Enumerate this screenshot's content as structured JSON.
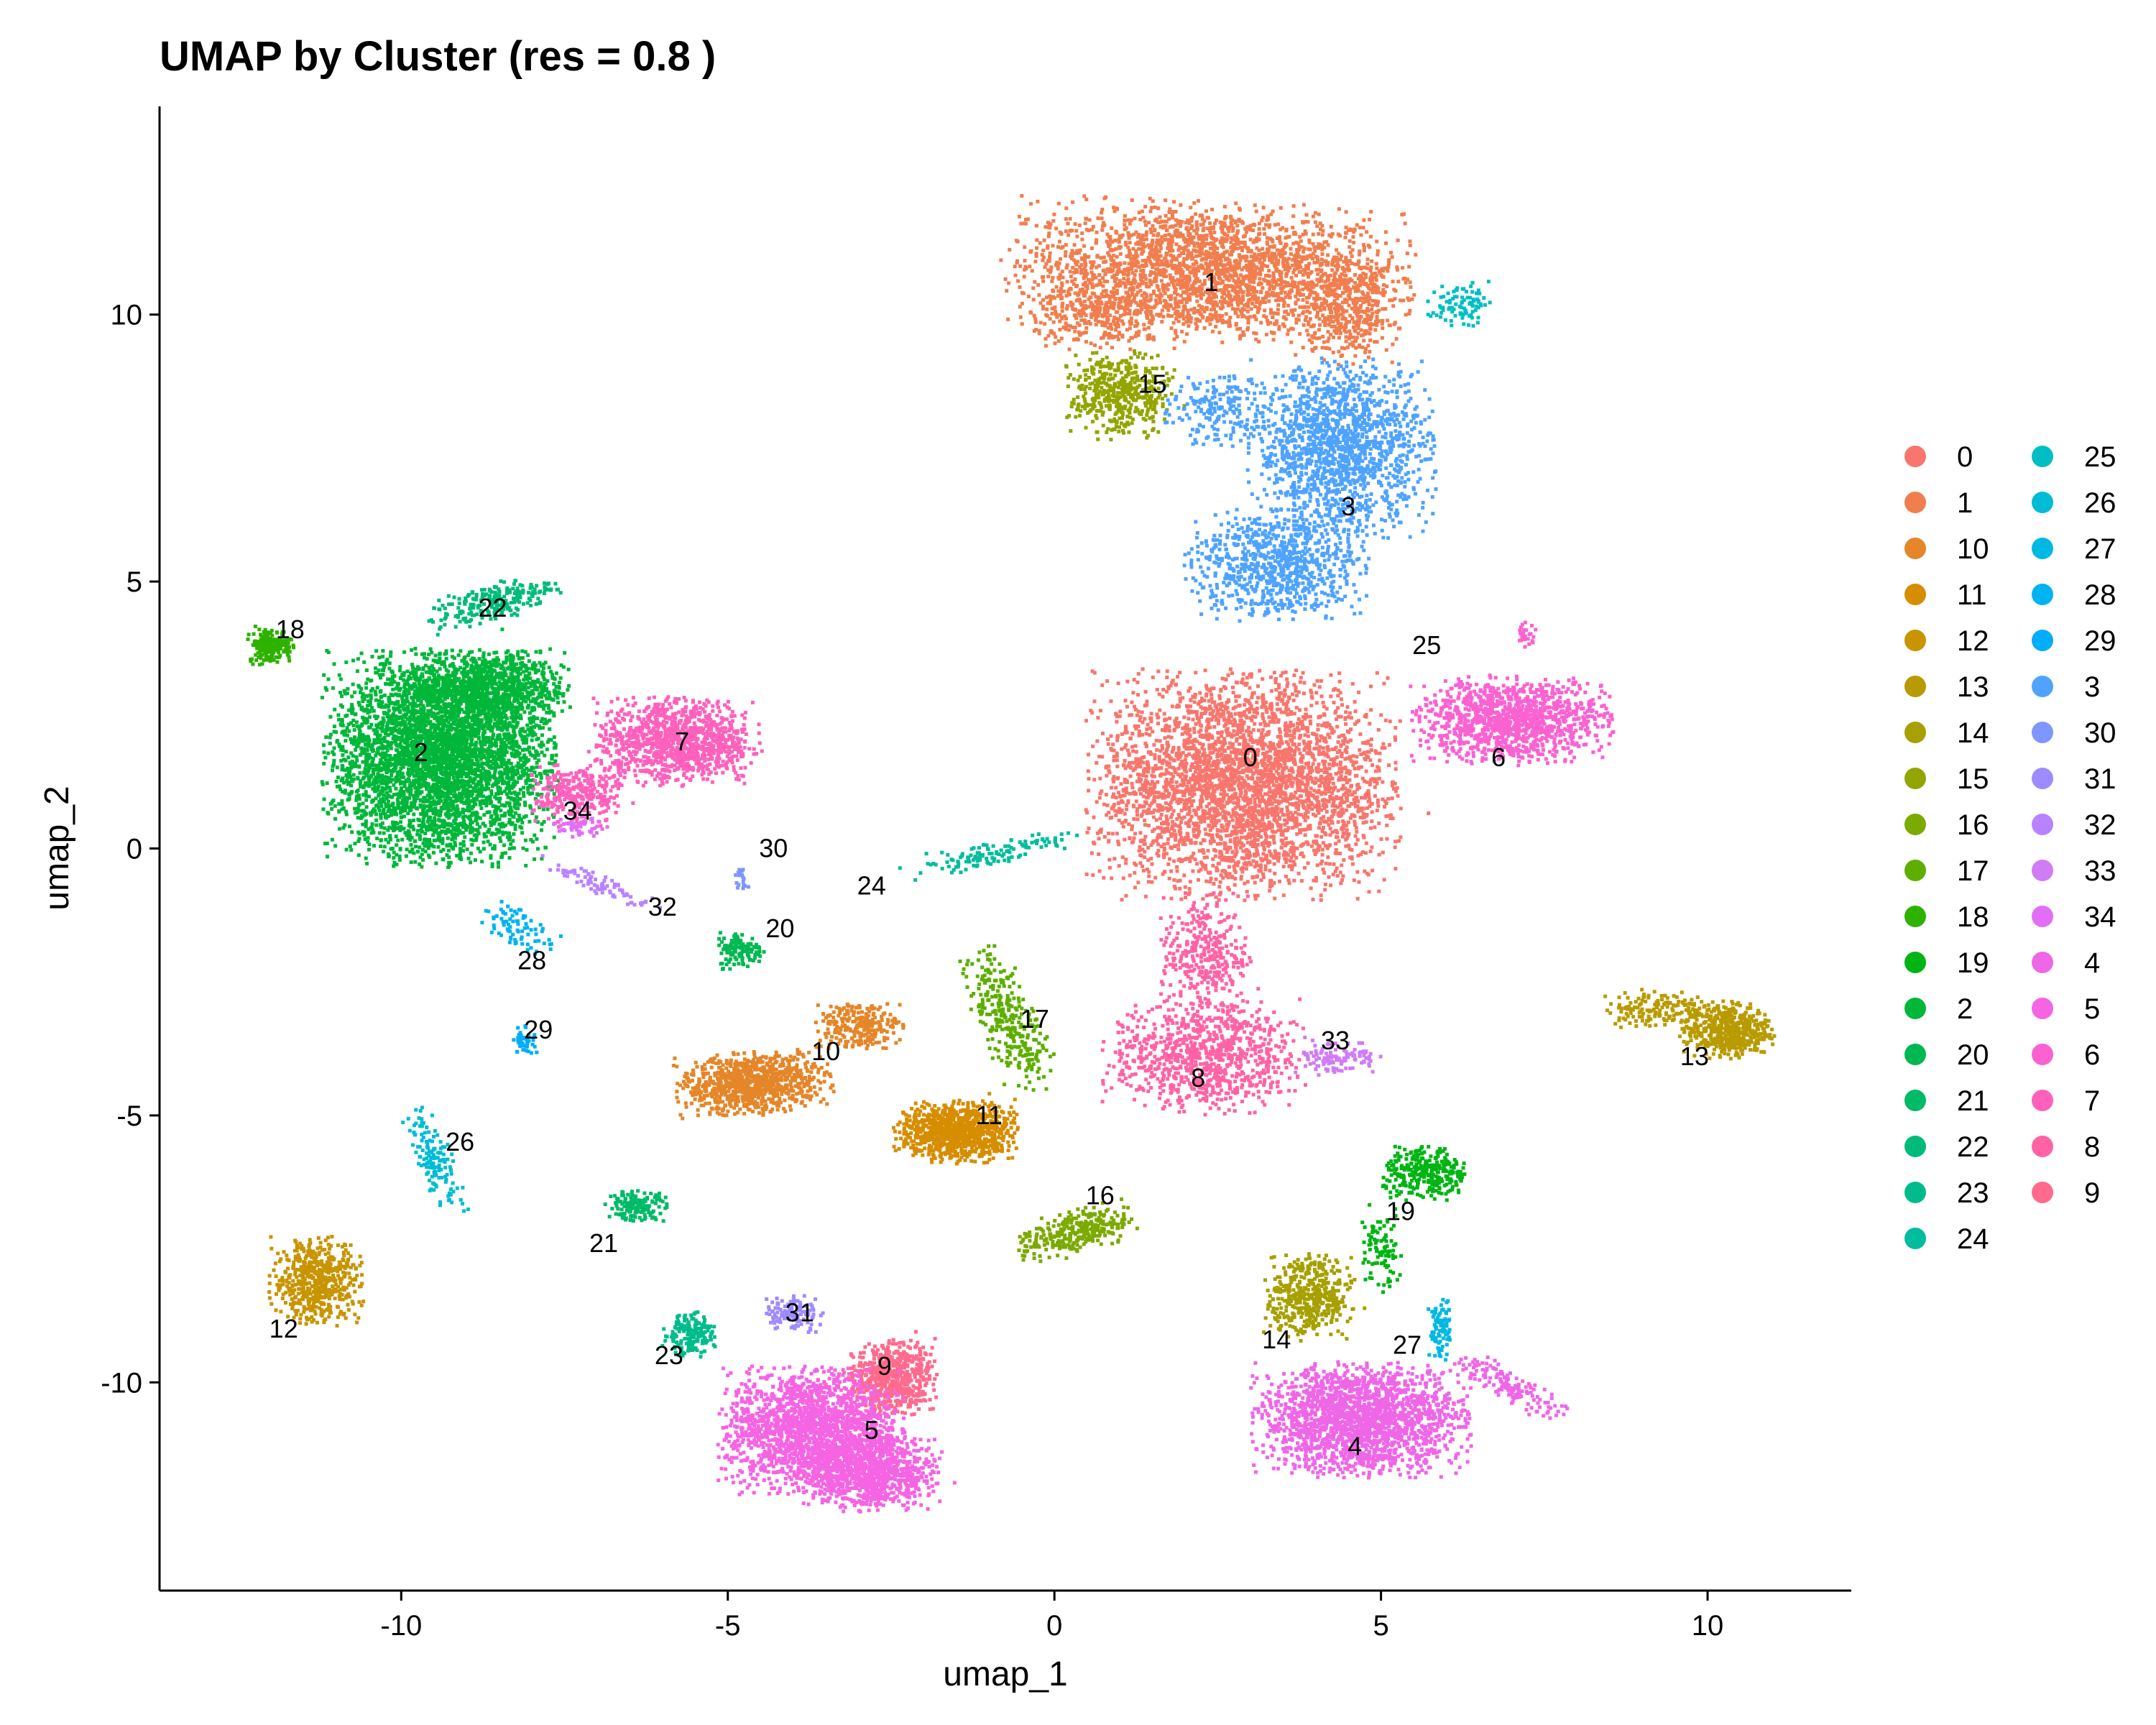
{
  "chart_data": {
    "type": "scatter",
    "title": "UMAP by Cluster (res = 0.8 )",
    "xlabel": "umap_1",
    "ylabel": "umap_2",
    "xlim": [
      -13.7,
      12.2
    ],
    "ylim": [
      -13.9,
      13.9
    ],
    "x_ticks": [
      -10,
      -5,
      0,
      5,
      10
    ],
    "x_tick_labels": [
      "-10",
      "-5",
      "0",
      "5",
      "10"
    ],
    "y_ticks": [
      -10,
      -5,
      0,
      5,
      10
    ],
    "y_tick_labels": [
      "-10",
      "-5",
      "0",
      "5",
      "10"
    ],
    "grid": false,
    "legend_position": "right",
    "legend_columns": 2,
    "clusters": [
      {
        "name": "0",
        "color": "#F8766D",
        "label_x": 3.0,
        "label_y": 1.7
      },
      {
        "name": "1",
        "color": "#F07E4F",
        "label_x": 2.4,
        "label_y": 10.6
      },
      {
        "name": "10",
        "color": "#E48629",
        "label_x": -3.5,
        "label_y": -3.8
      },
      {
        "name": "11",
        "color": "#D78D00",
        "label_x": -1.0,
        "label_y": -5.0
      },
      {
        "name": "12",
        "color": "#C89400",
        "label_x": -11.8,
        "label_y": -9.0
      },
      {
        "name": "13",
        "color": "#B89B00",
        "label_x": 9.8,
        "label_y": -3.9
      },
      {
        "name": "14",
        "color": "#A6A000",
        "label_x": 3.4,
        "label_y": -9.2
      },
      {
        "name": "15",
        "color": "#92A500",
        "label_x": 1.5,
        "label_y": 8.7
      },
      {
        "name": "16",
        "color": "#7BAA00",
        "label_x": 0.7,
        "label_y": -6.5
      },
      {
        "name": "17",
        "color": "#5EAE00",
        "label_x": -0.3,
        "label_y": -3.2
      },
      {
        "name": "18",
        "color": "#2EB200",
        "label_x": -11.7,
        "label_y": 4.1
      },
      {
        "name": "19",
        "color": "#00B413",
        "label_x": 5.3,
        "label_y": -6.8
      },
      {
        "name": "2",
        "color": "#00B73A",
        "label_x": -9.7,
        "label_y": 1.8
      },
      {
        "name": "20",
        "color": "#00B852",
        "label_x": -4.2,
        "label_y": -1.5
      },
      {
        "name": "21",
        "color": "#00BA67",
        "label_x": -6.9,
        "label_y": -7.4
      },
      {
        "name": "22",
        "color": "#00BB7A",
        "label_x": -8.6,
        "label_y": 4.5
      },
      {
        "name": "23",
        "color": "#00BC8C",
        "label_x": -5.9,
        "label_y": -9.5
      },
      {
        "name": "24",
        "color": "#00BD9D",
        "label_x": -2.8,
        "label_y": -0.7
      },
      {
        "name": "25",
        "color": "#00BFC4",
        "label_x": 5.7,
        "label_y": 3.8
      },
      {
        "name": "26",
        "color": "#00BCD5",
        "label_x": -9.1,
        "label_y": -5.5
      },
      {
        "name": "27",
        "color": "#00B8E4",
        "label_x": 5.4,
        "label_y": -9.3
      },
      {
        "name": "28",
        "color": "#00B3F1",
        "label_x": -8.0,
        "label_y": -2.1
      },
      {
        "name": "29",
        "color": "#00ADFA",
        "label_x": -7.9,
        "label_y": -3.4
      },
      {
        "name": "3",
        "color": "#4FA3FF",
        "label_x": 4.5,
        "label_y": 6.4
      },
      {
        "name": "30",
        "color": "#7E96FF",
        "label_x": -4.3,
        "label_y": 0.0
      },
      {
        "name": "31",
        "color": "#9E8BFF",
        "label_x": -3.9,
        "label_y": -8.7
      },
      {
        "name": "32",
        "color": "#B983FF",
        "label_x": -6.0,
        "label_y": -1.1
      },
      {
        "name": "33",
        "color": "#D07CF5",
        "label_x": 4.3,
        "label_y": -3.6
      },
      {
        "name": "34",
        "color": "#E36EF6",
        "label_x": -7.3,
        "label_y": 0.7
      },
      {
        "name": "4",
        "color": "#EE67E7",
        "label_x": 4.6,
        "label_y": -11.2
      },
      {
        "name": "5",
        "color": "#F564E3",
        "label_x": -2.8,
        "label_y": -10.9
      },
      {
        "name": "6",
        "color": "#FA62D1",
        "label_x": 6.8,
        "label_y": 1.7
      },
      {
        "name": "7",
        "color": "#FD61BC",
        "label_x": -5.7,
        "label_y": 2.0
      },
      {
        "name": "8",
        "color": "#FF63A5",
        "label_x": 2.2,
        "label_y": -4.3
      },
      {
        "name": "9",
        "color": "#FF6A8D",
        "label_x": -2.6,
        "label_y": -9.7
      }
    ]
  }
}
